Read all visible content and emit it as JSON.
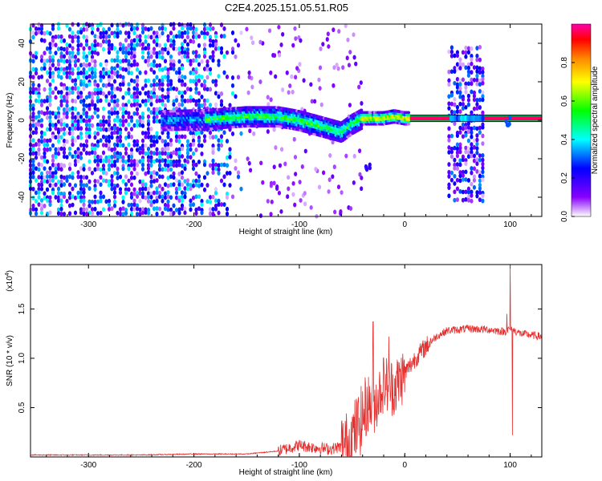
{
  "title": "C2E4.2025.151.05.51.R05",
  "colors": {
    "snr_line": "#e53030",
    "frame": "#000000"
  },
  "chart_data": [
    {
      "type": "heatmap",
      "xlabel": "Height of straight line (km)",
      "ylabel": "Frequency (Hz)",
      "xlim": [
        -355,
        130
      ],
      "ylim": [
        -50,
        50
      ],
      "x_ticks": [
        -300,
        -200,
        -100,
        0,
        100
      ],
      "x_tick_labels": [
        "-300",
        "-200",
        "-100",
        "0",
        "100"
      ],
      "y_ticks": [
        -40,
        -20,
        0,
        20,
        40
      ],
      "y_tick_labels": [
        "-40",
        "-20",
        "0",
        "20",
        "40"
      ],
      "colorbar": {
        "label": "Normalized spectral amplitude",
        "range": [
          0,
          1
        ],
        "ticks": [
          0.0,
          0.2,
          0.4,
          0.6,
          0.8
        ],
        "tick_labels": [
          "0.0",
          "0.2",
          "0.4",
          "0.6",
          "0.8"
        ],
        "colormap": [
          "#ffffff",
          "#8800ff",
          "#0000ff",
          "#00ffff",
          "#00ff00",
          "#ffff00",
          "#ff8800",
          "#ff0000",
          "#ff00aa"
        ]
      },
      "carrier_track": [
        {
          "x": -230,
          "y": 0
        },
        {
          "x": -190,
          "y": 0.5
        },
        {
          "x": -150,
          "y": 2
        },
        {
          "x": -120,
          "y": 2
        },
        {
          "x": -100,
          "y": 0
        },
        {
          "x": -80,
          "y": -3
        },
        {
          "x": -60,
          "y": -6
        },
        {
          "x": -50,
          "y": -2
        },
        {
          "x": -40,
          "y": 1
        },
        {
          "x": -20,
          "y": 1
        },
        {
          "x": -10,
          "y": 2
        },
        {
          "x": 0,
          "y": 1
        },
        {
          "x": 10,
          "y": 1
        },
        {
          "x": 130,
          "y": 1
        }
      ],
      "noise_regions": [
        {
          "x_from": -355,
          "x_to": -150,
          "y_from": -50,
          "y_to": 50,
          "level": 0.25
        },
        {
          "x_from": 42,
          "x_to": 75,
          "y_from": -42,
          "y_to": 38,
          "level": 0.2
        }
      ],
      "features": [
        {
          "x": -35,
          "y": -25,
          "level": 0.2
        },
        {
          "x": 98,
          "y": 0,
          "level": 0.3
        }
      ]
    },
    {
      "type": "line",
      "xlabel": "Height of straight line (km)",
      "ylabel": "SNR (10 * v/v)",
      "y_multiplier": "(x10",
      "y_multiplier_exp": "4",
      "y_multiplier_close": ")",
      "xlim": [
        -355,
        130
      ],
      "ylim": [
        0,
        1.95
      ],
      "x_ticks": [
        -300,
        -200,
        -100,
        0,
        100
      ],
      "x_tick_labels": [
        "-300",
        "-200",
        "-100",
        "0",
        "100"
      ],
      "y_ticks": [
        0.5,
        1.0,
        1.5
      ],
      "y_tick_labels": [
        "0.5",
        "1.0",
        "1.5"
      ],
      "series": [
        {
          "values": [
            {
              "x": -355,
              "y": 0.02
            },
            {
              "x": -250,
              "y": 0.02
            },
            {
              "x": -200,
              "y": 0.03
            },
            {
              "x": -150,
              "y": 0.03
            },
            {
              "x": -120,
              "y": 0.06
            },
            {
              "x": -100,
              "y": 0.12
            },
            {
              "x": -90,
              "y": 0.1
            },
            {
              "x": -70,
              "y": 0.08
            },
            {
              "x": -55,
              "y": 0.12
            },
            {
              "x": -45,
              "y": 0.3
            },
            {
              "x": -40,
              "y": 0.4
            },
            {
              "x": -35,
              "y": 0.55
            },
            {
              "x": -30,
              "y": 0.5
            },
            {
              "x": -20,
              "y": 0.75
            },
            {
              "x": -10,
              "y": 0.7
            },
            {
              "x": 0,
              "y": 0.85
            },
            {
              "x": 10,
              "y": 1.0
            },
            {
              "x": 20,
              "y": 1.12
            },
            {
              "x": 30,
              "y": 1.22
            },
            {
              "x": 40,
              "y": 1.28
            },
            {
              "x": 60,
              "y": 1.3
            },
            {
              "x": 80,
              "y": 1.29
            },
            {
              "x": 95,
              "y": 1.27
            },
            {
              "x": 100,
              "y": 1.3
            },
            {
              "x": 110,
              "y": 1.25
            },
            {
              "x": 130,
              "y": 1.22
            }
          ],
          "noise": [
            {
              "x_from": -120,
              "x_to": -60,
              "amp": 0.06
            },
            {
              "x_from": -60,
              "x_to": -35,
              "amp": 0.35
            },
            {
              "x_from": -35,
              "x_to": 0,
              "amp": 0.3
            },
            {
              "x_from": 0,
              "x_to": 25,
              "amp": 0.1
            },
            {
              "x_from": 25,
              "x_to": 130,
              "amp": 0.04
            }
          ],
          "spikes": [
            {
              "x": -30,
              "y": 1.37
            },
            {
              "x": -35,
              "y": 0.28
            },
            {
              "x": -15,
              "y": 1.22
            },
            {
              "x": 100,
              "y": 1.95
            },
            {
              "x": 102,
              "y": 0.22
            },
            {
              "x": 97,
              "y": 1.45
            }
          ]
        }
      ]
    }
  ]
}
